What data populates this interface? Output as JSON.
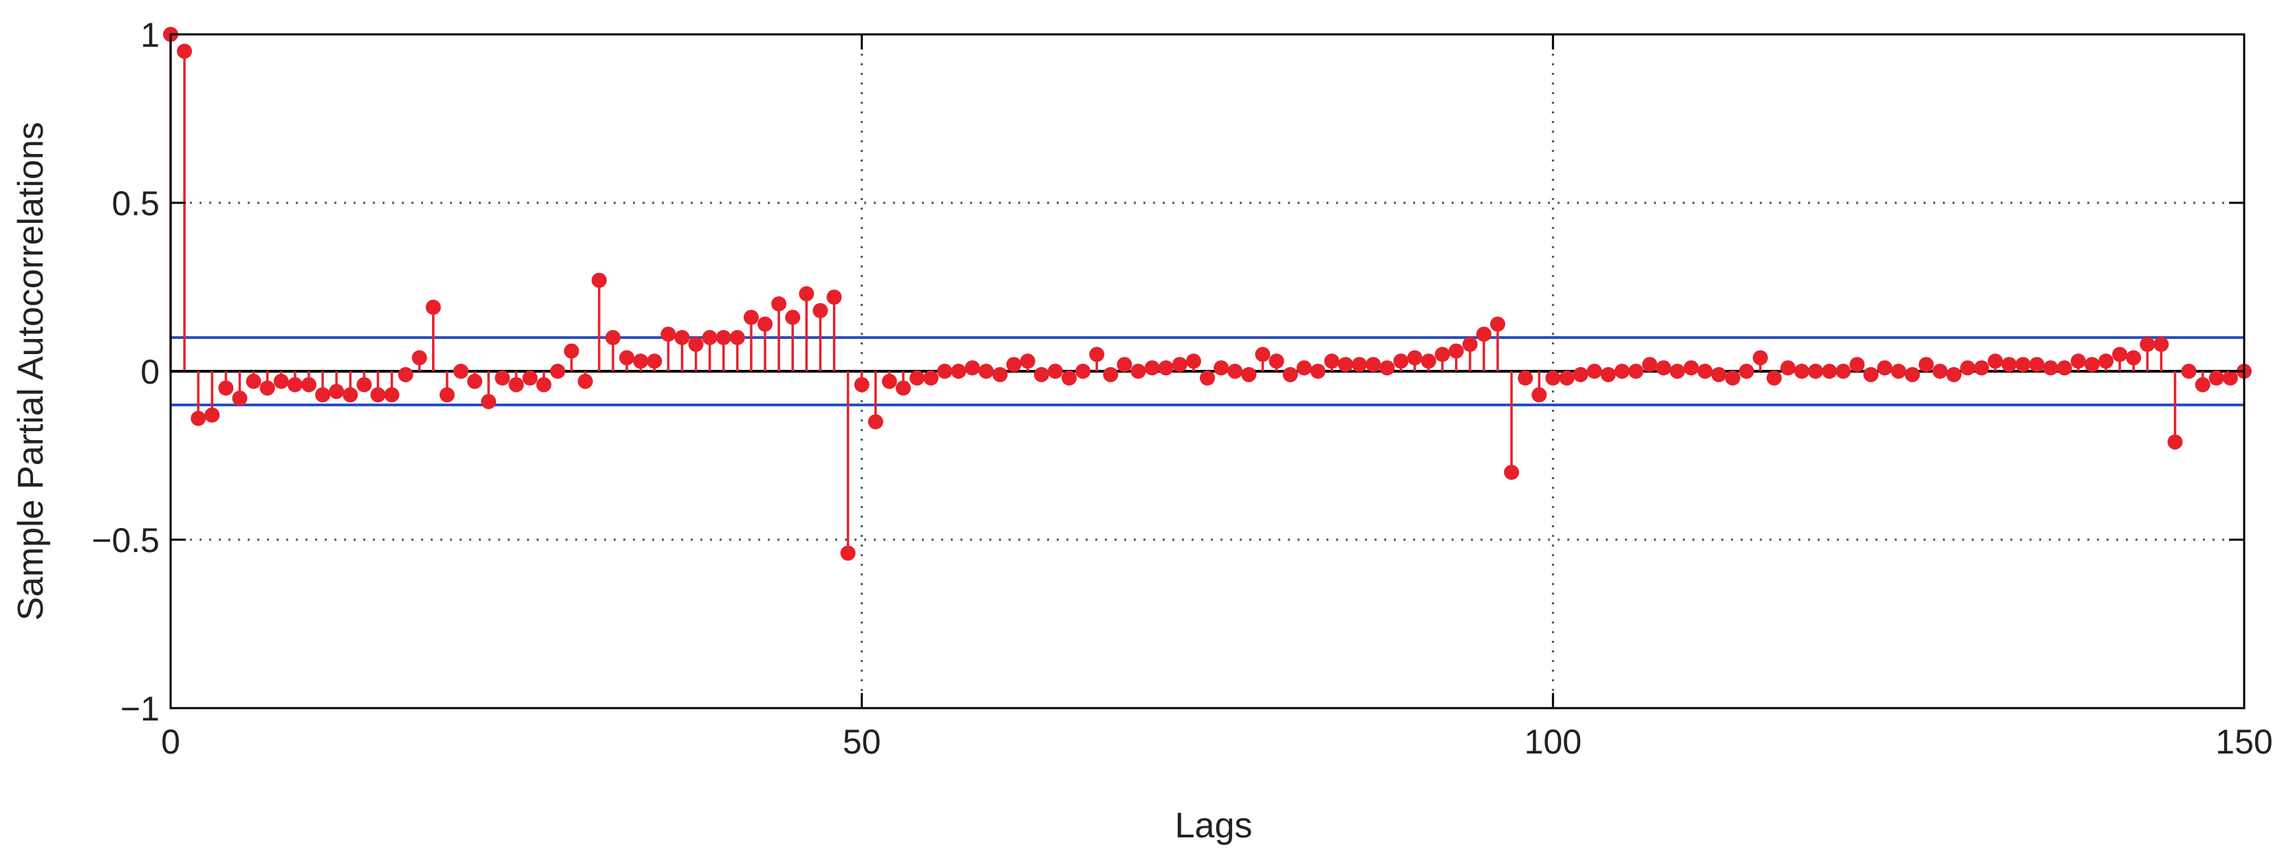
{
  "chart_data": {
    "type": "stem",
    "title": "",
    "xlabel": "Lags",
    "ylabel": "Sample Partial Autocorrelations",
    "xlim": [
      0,
      150
    ],
    "ylim": [
      -1,
      1
    ],
    "xticks": [
      0,
      50,
      100,
      150
    ],
    "yticks": [
      -1,
      -0.5,
      0,
      0.5,
      1
    ],
    "xtick_labels": [
      "0",
      "50",
      "100",
      "150"
    ],
    "ytick_labels": [
      "−1",
      "−0.5",
      "0",
      "0.5",
      "1"
    ],
    "grid": "dotted",
    "confidence_bounds": [
      0.1,
      -0.1
    ],
    "colors": {
      "stem": "#e8202a",
      "bounds": "#2b4fc0",
      "axis": "#000000",
      "grid": "#555555"
    },
    "series": [
      {
        "x": [
          0,
          1,
          2,
          3,
          4,
          5,
          6,
          7,
          8,
          9,
          10,
          11,
          12,
          13,
          14,
          15,
          16,
          17,
          18,
          19,
          20,
          21,
          22,
          23,
          24,
          25,
          26,
          27,
          28,
          29,
          30,
          31,
          32,
          33,
          34,
          35,
          36,
          37,
          38,
          39,
          40,
          41,
          42,
          43,
          44,
          45,
          46,
          47,
          48,
          49,
          50,
          51,
          52,
          53,
          54,
          55,
          56,
          57,
          58,
          59,
          60,
          61,
          62,
          63,
          64,
          65,
          66,
          67,
          68,
          69,
          70,
          71,
          72,
          73,
          74,
          75,
          76,
          77,
          78,
          79,
          80,
          81,
          82,
          83,
          84,
          85,
          86,
          87,
          88,
          89,
          90,
          91,
          92,
          93,
          94,
          95,
          96,
          97,
          98,
          99,
          100,
          101,
          102,
          103,
          104,
          105,
          106,
          107,
          108,
          109,
          110,
          111,
          112,
          113,
          114,
          115,
          116,
          117,
          118,
          119,
          120,
          121,
          122,
          123,
          124,
          125,
          126,
          127,
          128,
          129,
          130,
          131,
          132,
          133,
          134,
          135,
          136,
          137,
          138,
          139,
          140,
          141,
          142,
          143,
          144,
          145,
          146,
          147,
          148,
          149,
          150
        ],
        "y": [
          1.0,
          0.95,
          -0.14,
          -0.13,
          -0.05,
          -0.08,
          -0.03,
          -0.05,
          -0.03,
          -0.04,
          -0.04,
          -0.07,
          -0.06,
          -0.07,
          -0.04,
          -0.07,
          -0.07,
          -0.01,
          0.04,
          0.19,
          -0.07,
          0.0,
          -0.03,
          -0.09,
          -0.02,
          -0.04,
          -0.02,
          -0.04,
          0.0,
          0.06,
          -0.03,
          0.27,
          0.1,
          0.04,
          0.03,
          0.03,
          0.11,
          0.1,
          0.08,
          0.1,
          0.1,
          0.1,
          0.16,
          0.14,
          0.2,
          0.16,
          0.23,
          0.18,
          0.22,
          -0.54,
          -0.04,
          -0.15,
          -0.03,
          -0.05,
          -0.02,
          -0.02,
          0.0,
          0.0,
          0.01,
          0.0,
          -0.01,
          0.02,
          0.03,
          -0.01,
          0.0,
          -0.02,
          0.0,
          0.05,
          -0.01,
          0.02,
          0.0,
          0.01,
          0.01,
          0.02,
          0.03,
          -0.02,
          0.01,
          0.0,
          -0.01,
          0.05,
          0.03,
          -0.01,
          0.01,
          0.0,
          0.03,
          0.02,
          0.02,
          0.02,
          0.01,
          0.03,
          0.04,
          0.03,
          0.05,
          0.06,
          0.08,
          0.11,
          0.14,
          -0.3,
          -0.02,
          -0.07,
          -0.02,
          -0.02,
          -0.01,
          0.0,
          -0.01,
          0.0,
          0.0,
          0.02,
          0.01,
          0.0,
          0.01,
          0.0,
          -0.01,
          -0.02,
          0.0,
          0.04,
          -0.02,
          0.01,
          0.0,
          0.0,
          0.0,
          0.0,
          0.02,
          -0.01,
          0.01,
          0.0,
          -0.01,
          0.02,
          0.0,
          -0.01,
          0.01,
          0.01,
          0.03,
          0.02,
          0.02,
          0.02,
          0.01,
          0.01,
          0.03,
          0.02,
          0.03,
          0.05,
          0.04,
          0.08,
          0.08,
          -0.21,
          0.0,
          -0.04,
          -0.02,
          -0.02,
          0.0
        ]
      }
    ]
  }
}
